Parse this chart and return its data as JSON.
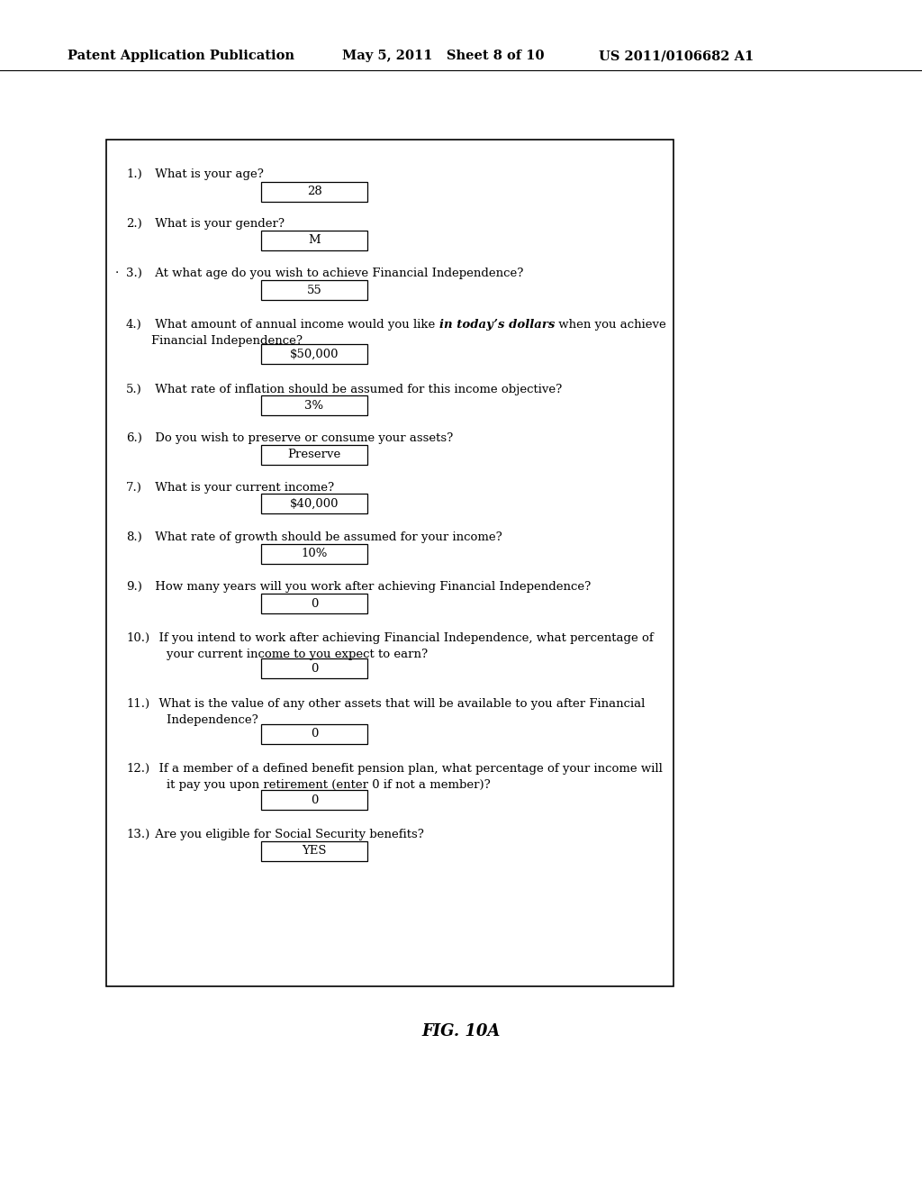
{
  "header_left": "Patent Application Publication",
  "header_mid": "May 5, 2011   Sheet 8 of 10",
  "header_right": "US 2011/0106682 A1",
  "fig_label": "FIG. 10A",
  "bg_color": "#ffffff",
  "questions": [
    {
      "num": "1.)",
      "text": " What is your age?",
      "answer": "28",
      "lines": 1,
      "dot": false
    },
    {
      "num": "2.)",
      "text": " What is your gender?",
      "answer": "M",
      "lines": 1,
      "dot": false
    },
    {
      "num": "3.)",
      "text": " At what age do you wish to achieve Financial Independence?",
      "answer": "55",
      "lines": 1,
      "dot": true
    },
    {
      "num": "4.)",
      "text_plain1": " What amount of annual income would you like ",
      "text_bold": "in today’s dollars",
      "text_plain2": " when you achieve",
      "text_line2": "Financial Independence?",
      "answer": "$50,000",
      "lines": 2,
      "dot": false
    },
    {
      "num": "5.)",
      "text": " What rate of inflation should be assumed for this income objective?",
      "answer": "3%",
      "lines": 1,
      "dot": false
    },
    {
      "num": "6.)",
      "text": " Do you wish to preserve or consume your assets?",
      "answer": "Preserve",
      "lines": 1,
      "dot": false
    },
    {
      "num": "7.)",
      "text": " What is your current income?",
      "answer": "$40,000",
      "lines": 1,
      "dot": false
    },
    {
      "num": "8.)",
      "text": " What rate of growth should be assumed for your income?",
      "answer": "10%",
      "lines": 1,
      "dot": false
    },
    {
      "num": "9.)",
      "text": " How many years will you work after achieving Financial Independence?",
      "answer": "0",
      "lines": 1,
      "dot": false
    },
    {
      "num": "10.)",
      "text": "  If you intend to work after achieving Financial Independence, what percentage of\n    your current income to you expect to earn?",
      "answer": "0",
      "lines": 2,
      "dot": false
    },
    {
      "num": "11.)",
      "text": "  What is the value of any other assets that will be available to you after Financial\n    Independence?",
      "answer": "0",
      "lines": 2,
      "dot": false
    },
    {
      "num": "12.)",
      "text": "  If a member of a defined benefit pension plan, what percentage of your income will\n    it pay you upon retirement (enter 0 if not a member)?",
      "answer": "0",
      "lines": 2,
      "dot": false
    },
    {
      "num": "13.)",
      "text": " Are you eligible for Social Security benefits?",
      "answer": "YES",
      "lines": 1,
      "dot": false
    }
  ],
  "header_fontsize": 10.5,
  "question_fontsize": 9.5,
  "answer_fontsize": 9.5,
  "figlabel_fontsize": 13
}
